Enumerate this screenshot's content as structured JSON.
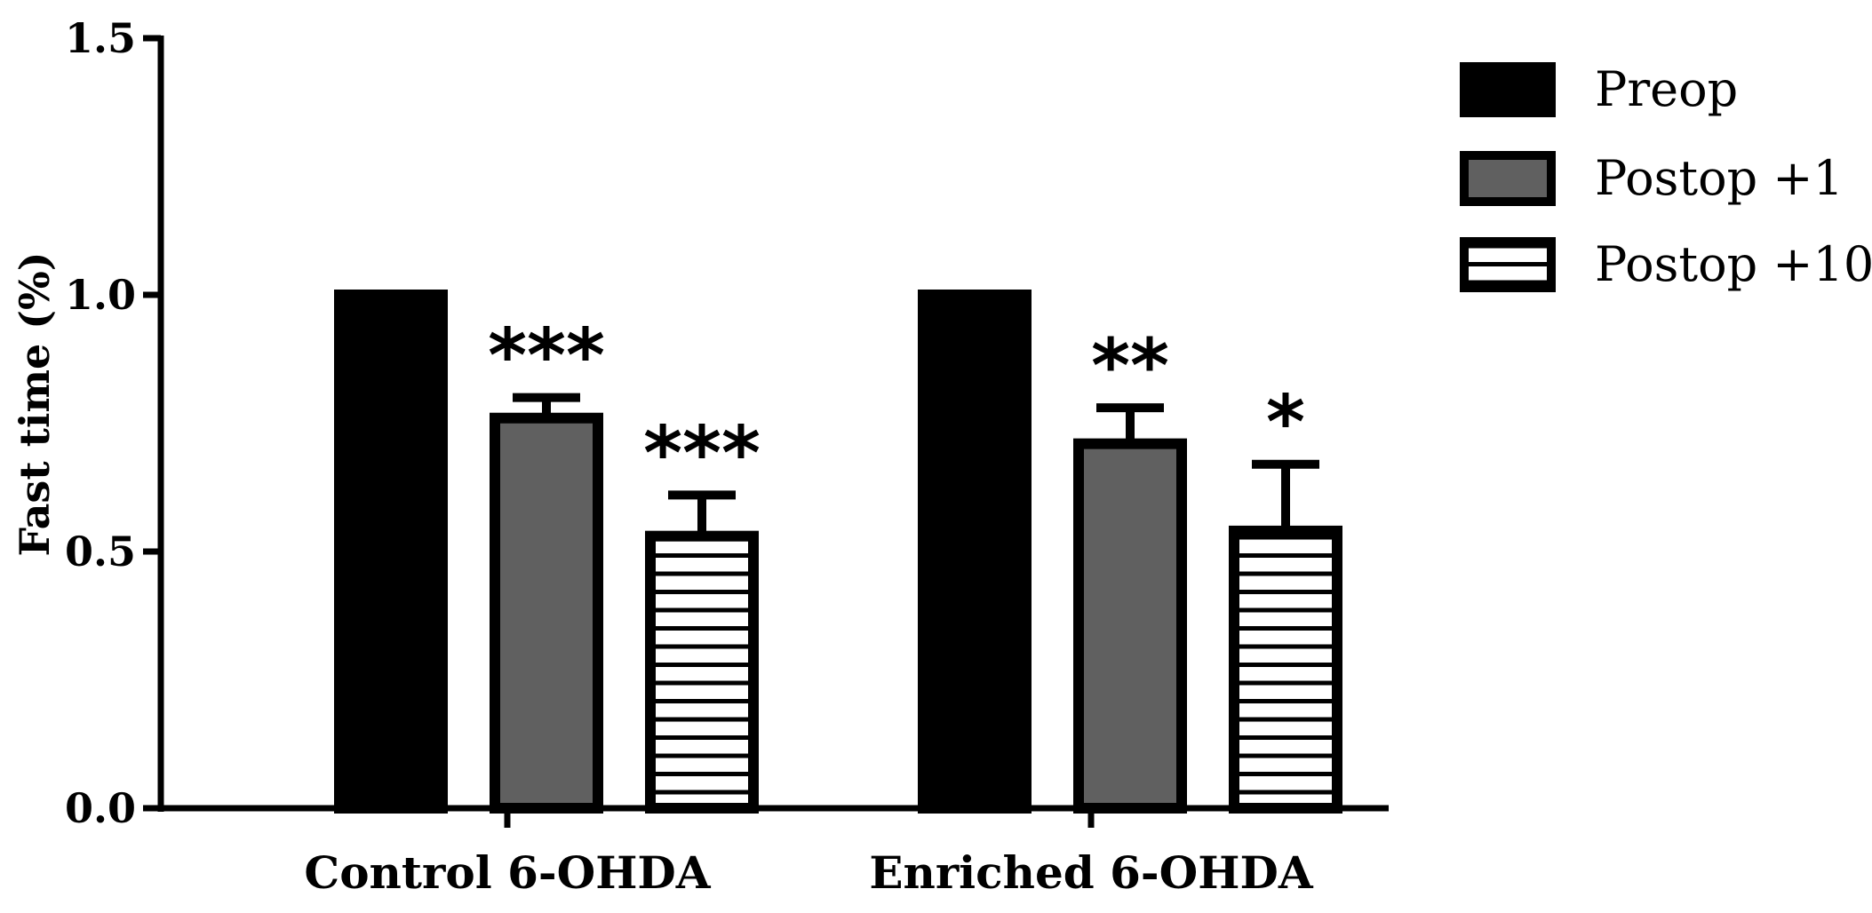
{
  "chart_data": {
    "type": "bar",
    "ylabel": "Fast time (%)",
    "ylim": [
      0,
      1.5
    ],
    "yticks": [
      "0.0",
      "0.5",
      "1.0",
      "1.5"
    ],
    "ytick_values": [
      0,
      0.5,
      1.0,
      1.5
    ],
    "categories": [
      "Control 6-OHDA",
      "Enriched 6-OHDA"
    ],
    "series": [
      {
        "name": "Preop",
        "values": [
          1.0,
          1.0
        ],
        "errors": [
          0,
          0
        ],
        "significance": [
          "",
          ""
        ],
        "fill": "solid",
        "color": "#000000"
      },
      {
        "name": "Postop +1",
        "values": [
          0.76,
          0.71
        ],
        "errors": [
          0.04,
          0.07
        ],
        "significance": [
          "***",
          "**"
        ],
        "fill": "solid",
        "color": "#606060"
      },
      {
        "name": "Postop +10",
        "values": [
          0.53,
          0.54
        ],
        "errors": [
          0.08,
          0.13
        ],
        "significance": [
          "***",
          "*"
        ],
        "fill": "hstripes",
        "color": "#ffffff"
      }
    ],
    "legend_position": "top-right",
    "grid": false
  }
}
